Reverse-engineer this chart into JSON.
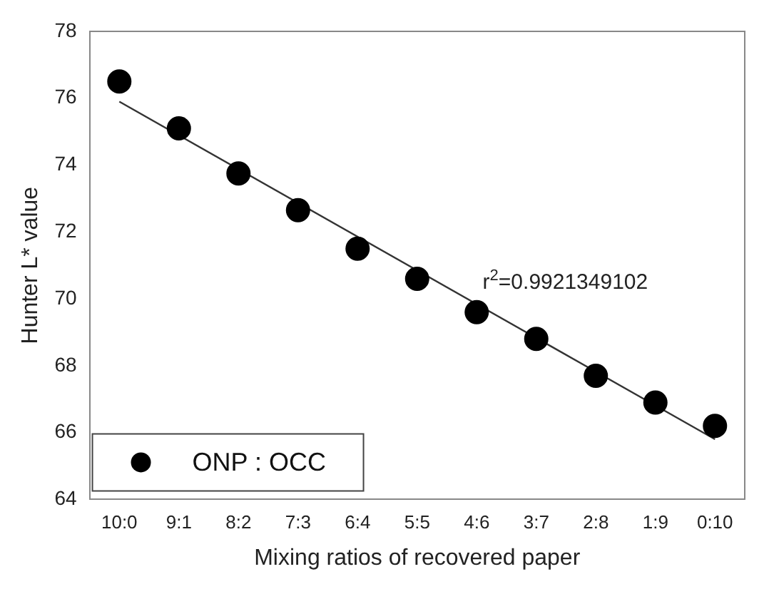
{
  "chart_data": {
    "type": "scatter",
    "xlabel": "Mixing ratios of recovered paper",
    "ylabel": "Hunter L* value",
    "categories": [
      "10:0",
      "9:1",
      "8:2",
      "7:3",
      "6:4",
      "5:5",
      "4:6",
      "3:7",
      "2:8",
      "1:9",
      "0:10"
    ],
    "series": [
      {
        "name": "ONP : OCC",
        "color": "#000000",
        "marker": "circle",
        "values": [
          76.5,
          75.1,
          73.75,
          72.65,
          71.5,
          70.6,
          69.6,
          68.8,
          67.7,
          66.9,
          66.2
        ]
      },
      {
        "type": "line",
        "color": "#333333",
        "marker": "none",
        "x": [
          "10:0",
          "0:10"
        ],
        "values": [
          75.9,
          65.8
        ]
      }
    ],
    "annotations": [
      "r$^{2}$=0.9921349102"
    ],
    "ylim": [
      64,
      78
    ],
    "yticks": [
      64,
      66,
      68,
      70,
      72,
      74,
      76,
      78
    ],
    "grid": false,
    "legend": "bottom left"
  }
}
